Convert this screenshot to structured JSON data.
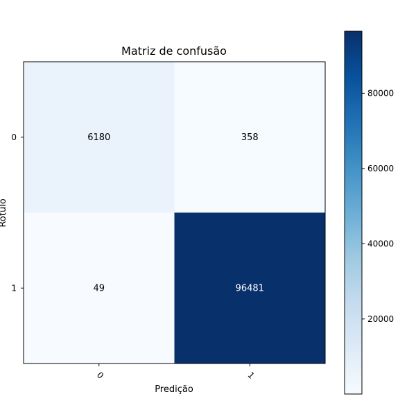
{
  "chart_data": {
    "type": "heatmap",
    "title": "Matriz de confusão",
    "xlabel": "Predição",
    "ylabel": "Rótulo",
    "x_categories": [
      "0",
      "1"
    ],
    "y_categories": [
      "0",
      "1"
    ],
    "values": [
      [
        6180,
        358
      ],
      [
        49,
        96481
      ]
    ],
    "colorbar": {
      "ticks": [
        20000,
        40000,
        60000,
        80000
      ],
      "range": [
        49,
        96481
      ],
      "colors": [
        "#f7fbff",
        "#deebf7",
        "#c6dbef",
        "#9ecae1",
        "#6baed6",
        "#4292c6",
        "#2171b5",
        "#08519c",
        "#08306b"
      ]
    }
  }
}
